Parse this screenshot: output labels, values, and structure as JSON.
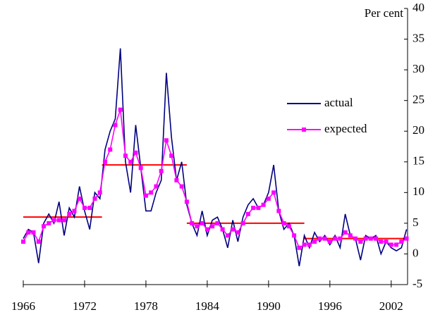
{
  "chart_data": {
    "type": "line",
    "y_axis_label": "Per cent",
    "x": [
      1966,
      1966.5,
      1967,
      1967.5,
      1968,
      1968.5,
      1969,
      1969.5,
      1970,
      1970.5,
      1971,
      1971.5,
      1972,
      1972.5,
      1973,
      1973.5,
      1974,
      1974.5,
      1975,
      1975.5,
      1976,
      1976.5,
      1977,
      1977.5,
      1978,
      1978.5,
      1979,
      1979.5,
      1980,
      1980.5,
      1981,
      1981.5,
      1982,
      1982.5,
      1983,
      1983.5,
      1984,
      1984.5,
      1985,
      1985.5,
      1986,
      1986.5,
      1987,
      1987.5,
      1988,
      1988.5,
      1989,
      1989.5,
      1990,
      1990.5,
      1991,
      1991.5,
      1992,
      1992.5,
      1993,
      1993.5,
      1994,
      1994.5,
      1995,
      1995.5,
      1996,
      1996.5,
      1997,
      1997.5,
      1998,
      1998.5,
      1999,
      1999.5,
      2000,
      2000.5,
      2001,
      2001.5,
      2002,
      2002.5,
      2003,
      2003.5
    ],
    "series": [
      {
        "name": "actual",
        "color": "#000080",
        "values": [
          2.5,
          4,
          3.5,
          -1.5,
          5,
          6.5,
          5,
          8.5,
          3,
          7.5,
          6,
          11,
          7,
          4,
          10,
          9,
          17,
          20,
          22,
          33.5,
          15,
          10,
          21,
          14,
          7,
          7,
          10,
          12,
          29.5,
          19,
          12,
          15,
          8,
          5,
          3,
          7,
          3,
          5.5,
          6,
          4,
          1,
          5.5,
          2,
          6,
          8,
          9,
          7.5,
          8,
          10,
          14.5,
          7,
          4,
          5,
          3,
          -2,
          3,
          1,
          3.5,
          2,
          3,
          1.5,
          3,
          1,
          6.5,
          3,
          2.5,
          -1,
          3,
          2.5,
          3,
          0,
          2,
          1,
          0.5,
          1,
          4
        ]
      },
      {
        "name": "expected",
        "color": "#ff00ff",
        "marker": "square",
        "values": [
          2,
          3.5,
          3.5,
          2,
          4.5,
          5,
          5.5,
          5.5,
          5.5,
          6.5,
          7,
          9,
          7.5,
          7.5,
          9,
          10,
          15,
          17,
          21,
          23.5,
          16,
          15,
          16.5,
          14,
          9.5,
          10,
          11,
          13.5,
          18.5,
          16,
          12,
          11,
          8.5,
          5,
          4.5,
          5,
          4,
          4.5,
          5,
          4,
          3,
          4,
          3.5,
          5,
          6.5,
          7.5,
          7.5,
          8,
          9,
          10,
          7,
          5,
          4.5,
          3,
          1,
          1.5,
          1.5,
          2,
          2.5,
          2.5,
          2,
          2.5,
          2.5,
          3.5,
          3,
          2.5,
          2,
          2.5,
          2.5,
          2.5,
          2,
          2,
          1.5,
          1.5,
          2,
          2.5
        ]
      }
    ],
    "reference_lines": [
      {
        "x": [
          1966,
          1973.7
        ],
        "value": 6,
        "color": "#ff0000"
      },
      {
        "x": [
          1973.7,
          1982
        ],
        "value": 14.5,
        "color": "#ff0000"
      },
      {
        "x": [
          1982,
          1993.5
        ],
        "value": 5,
        "color": "#ff0000"
      },
      {
        "x": [
          1993.5,
          2003.5
        ],
        "value": 2.5,
        "color": "#ff0000"
      }
    ],
    "xlim": [
      1966,
      2003.6
    ],
    "xticks": [
      1966,
      1972,
      1978,
      1984,
      1990,
      1996,
      2002
    ],
    "ylim": [
      -5,
      40
    ],
    "yticks": [
      -5,
      0,
      5,
      10,
      15,
      20,
      25,
      30,
      35,
      40
    ],
    "y_axis_side": "right",
    "legend": "right"
  }
}
